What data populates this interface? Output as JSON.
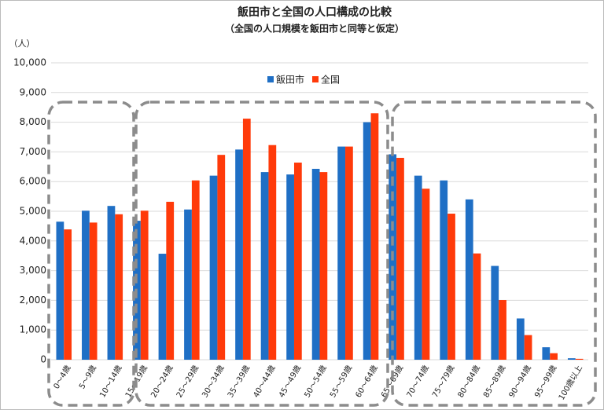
{
  "chart_data": {
    "type": "bar",
    "title": "飯田市と全国の人口構成の比較",
    "subtitle": "（全国の人口規模を飯田市と同等と仮定）",
    "y_label": "（人）",
    "categories": [
      "0～4歳",
      "5～9歳",
      "10～14歳",
      "15～19歳",
      "20～24歳",
      "25～29歳",
      "30～34歳",
      "35～39歳",
      "40～44歳",
      "45～49歳",
      "50～54歳",
      "55～59歳",
      "60～64歳",
      "65～69歳",
      "70～74歳",
      "75～79歳",
      "80～84歳",
      "85～89歳",
      "90～94歳",
      "95～99歳",
      "100歳以上"
    ],
    "series": [
      {
        "name": "飯田市",
        "color": "#1f6fc5",
        "values": [
          4650,
          5020,
          5180,
          4680,
          3570,
          5060,
          6200,
          7080,
          6320,
          6240,
          6430,
          7180,
          8000,
          6920,
          6200,
          6040,
          5400,
          3160,
          1390,
          420,
          50
        ]
      },
      {
        "name": "全国",
        "color": "#ff3a0a",
        "values": [
          4390,
          4620,
          4900,
          5020,
          5320,
          6040,
          6900,
          8120,
          7230,
          6640,
          6320,
          7180,
          8300,
          6800,
          5760,
          4920,
          3580,
          2010,
          830,
          220,
          30
        ]
      }
    ],
    "ylim": [
      0,
      10000
    ],
    "yticks": [
      0,
      {
        "value": 1000,
        "label": "1,000"
      },
      {
        "value": 2000,
        "label": "2,000"
      },
      {
        "value": 3000,
        "label": "3,000"
      },
      {
        "value": 4000,
        "label": "4,000"
      },
      {
        "value": 5000,
        "label": "5,000"
      },
      {
        "value": 6000,
        "label": "6,000"
      },
      {
        "value": 7000,
        "label": "7,000"
      },
      {
        "value": 8000,
        "label": "8,000"
      },
      {
        "value": 9000,
        "label": "9,000"
      },
      {
        "value": 10000,
        "label": "10,000"
      }
    ],
    "grid": true,
    "legend": "top"
  }
}
